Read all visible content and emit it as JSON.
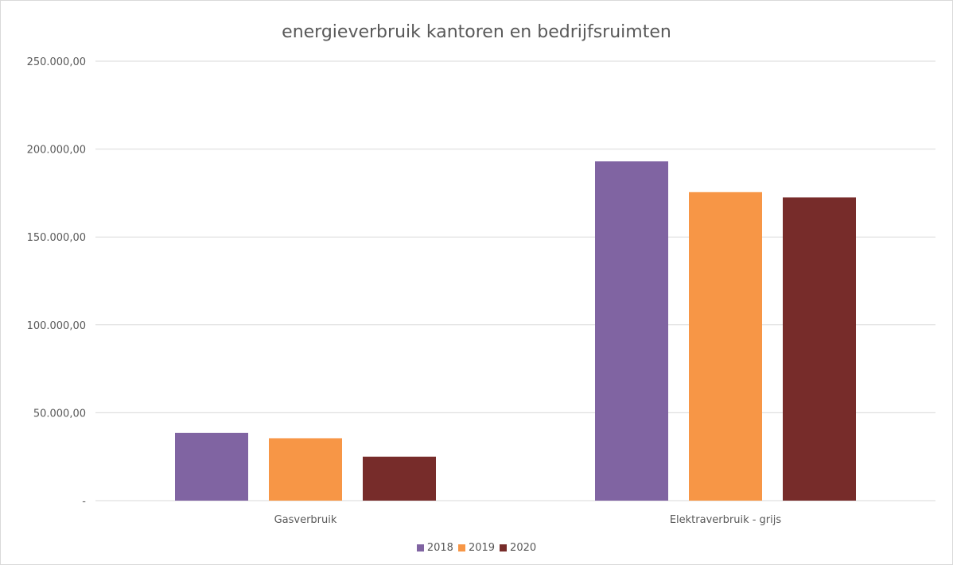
{
  "chart_data": {
    "type": "bar",
    "title": "energieverbruik kantoren en bedrijfsruimten",
    "categories": [
      "Gasverbruik",
      "Elektraverbruik - grijs"
    ],
    "series": [
      {
        "name": "2018",
        "color": "#8064a2",
        "values": [
          38500,
          193000
        ]
      },
      {
        "name": "2019",
        "color": "#f79646",
        "values": [
          35500,
          175500
        ]
      },
      {
        "name": "2020",
        "color": "#772c2a",
        "values": [
          25000,
          172500
        ]
      }
    ],
    "ylim": [
      0,
      250000
    ],
    "yticks": [
      0,
      50000,
      100000,
      150000,
      200000,
      250000
    ],
    "ytick_labels": [
      "-",
      "50.000,00",
      "100.000,00",
      "150.000,00",
      "200.000,00",
      "250.000,00"
    ],
    "xlabel": "",
    "ylabel": "",
    "grid": true,
    "legend": "bottom"
  }
}
